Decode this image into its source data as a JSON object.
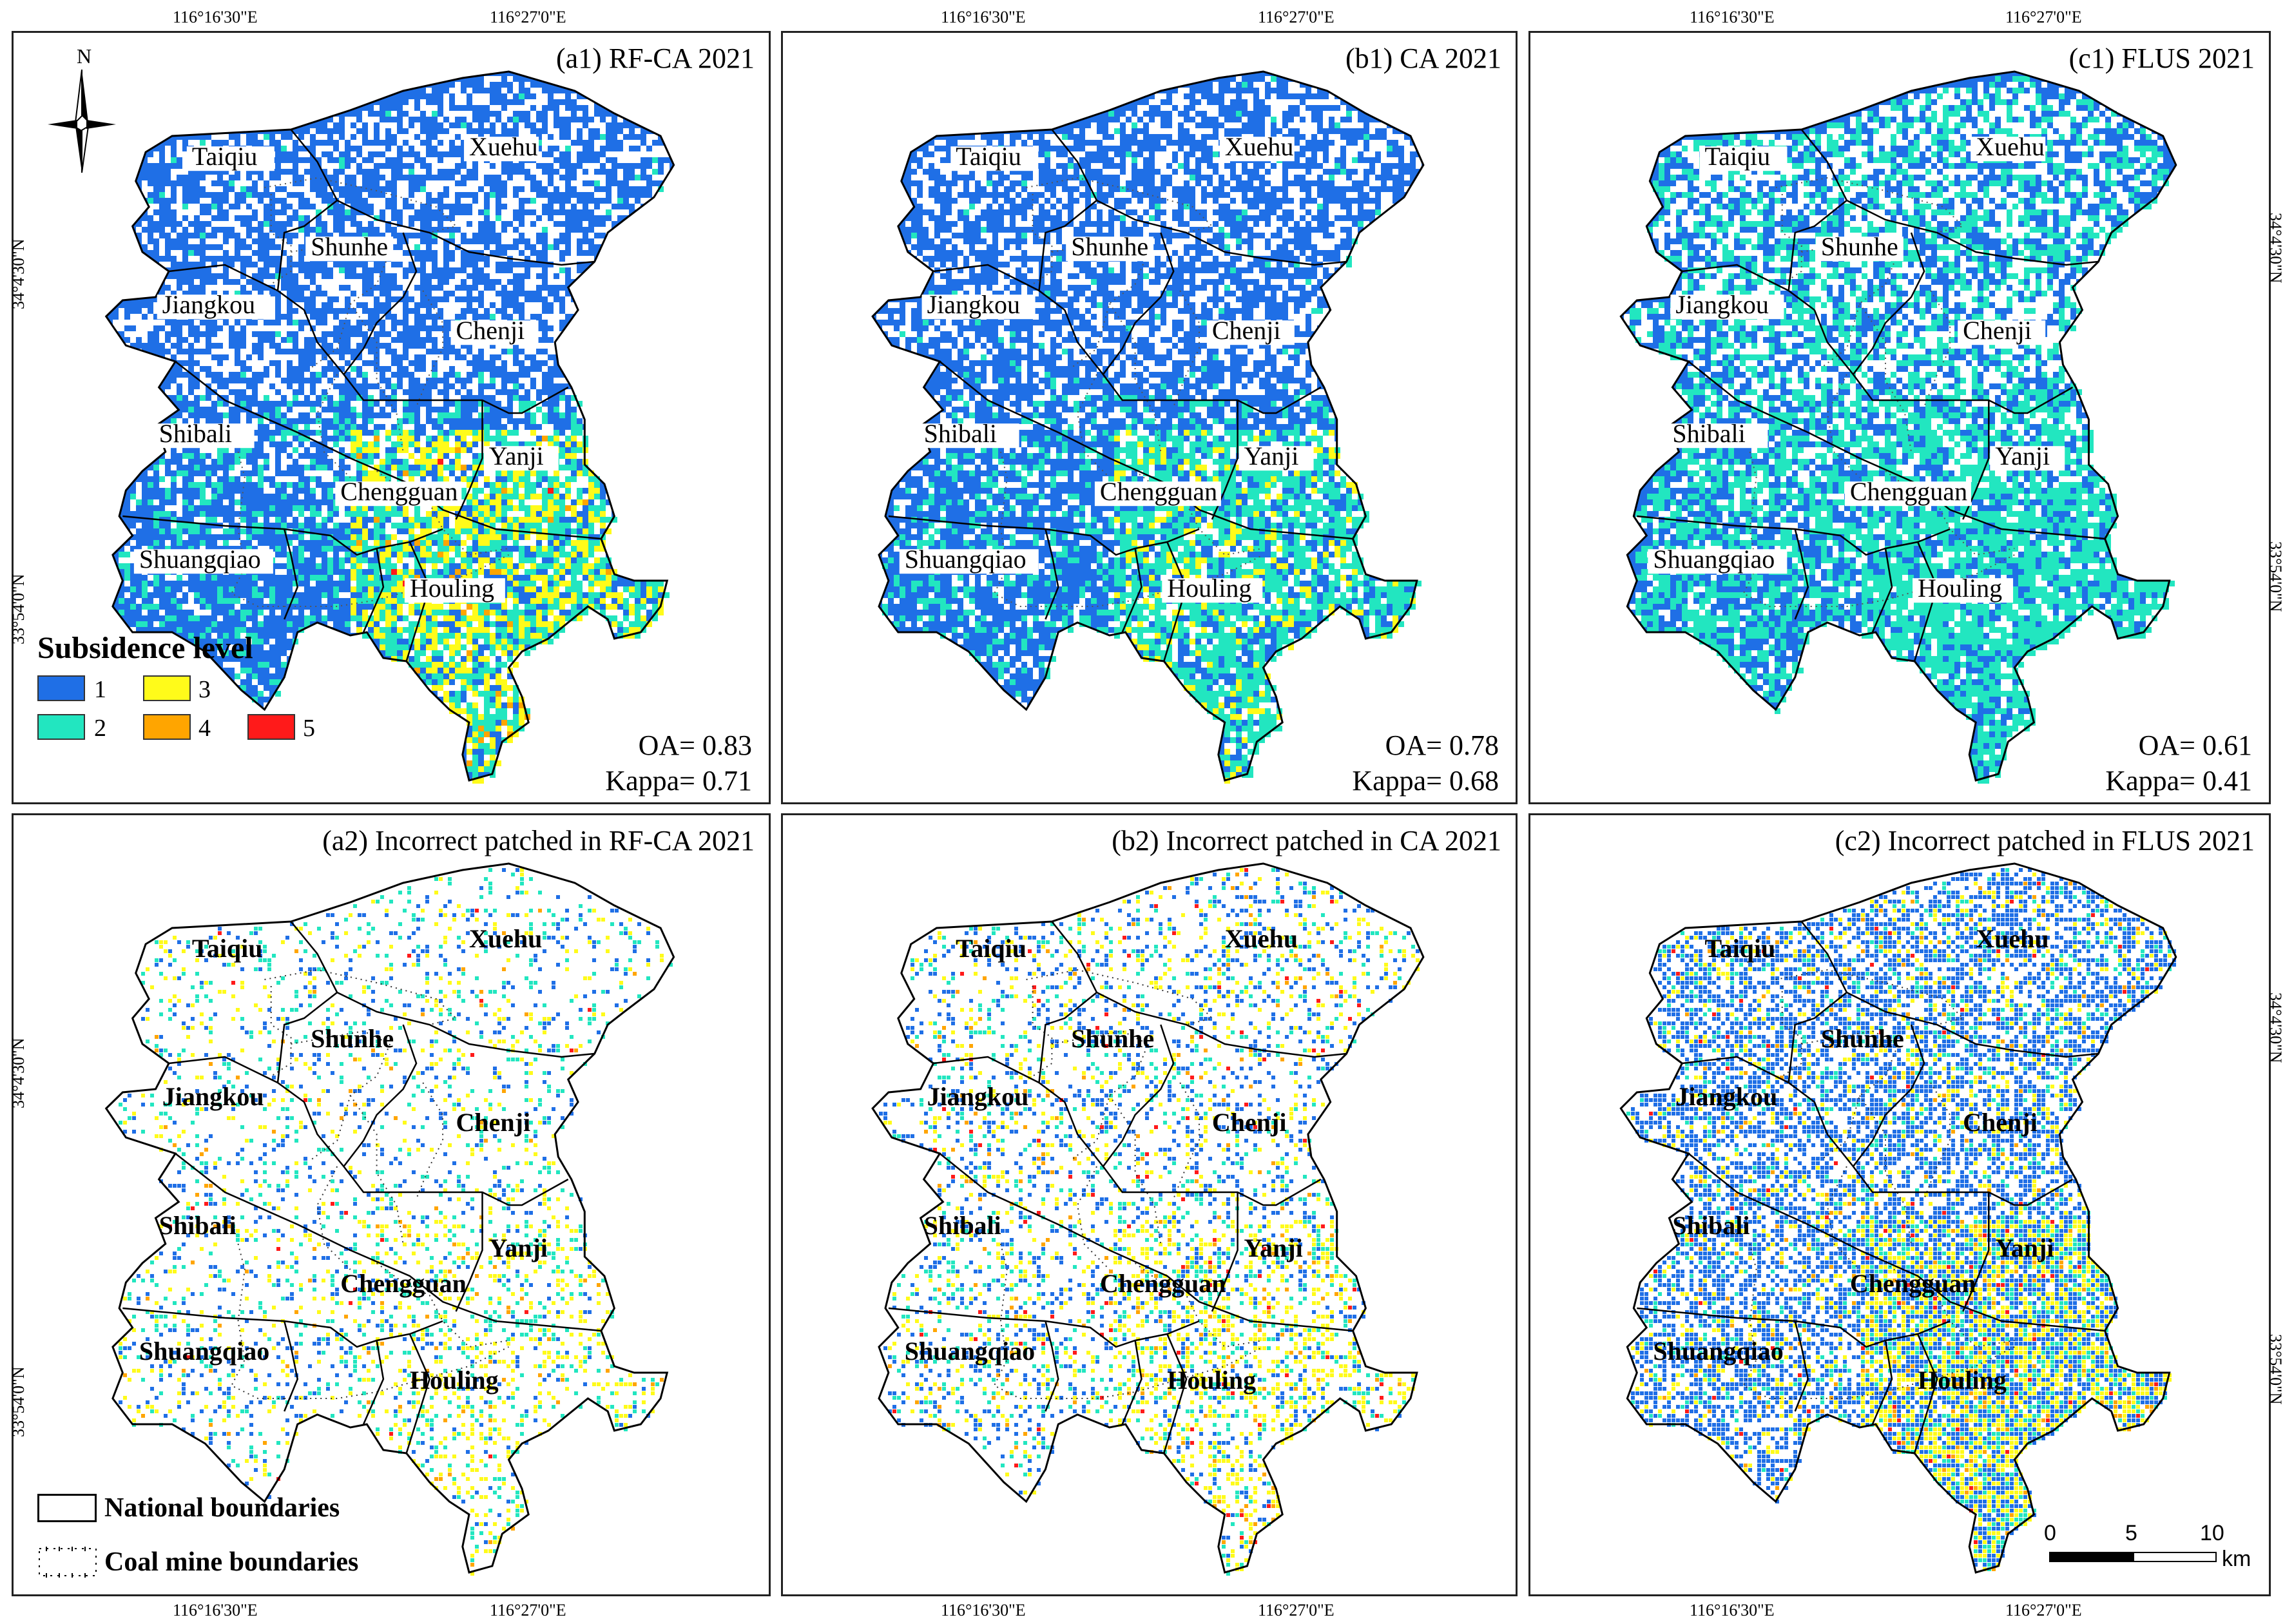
{
  "colors": {
    "level1": "#1f6fe6",
    "level2": "#22e6c0",
    "level3": "#fffb1a",
    "level4": "#ffa500",
    "level5": "#ff1a1a",
    "border": "#000000"
  },
  "coords": {
    "top_left": "116°16'30\"E",
    "top_right": "116°27'0\"E",
    "bottom_left": "116°16'30\"E",
    "bottom_right": "116°27'0\"E",
    "lat_top": "34°4'30\"N",
    "lat_bottom": "33°54'0\"N"
  },
  "north_label": "N",
  "panels": [
    {
      "id": "a1",
      "title": "(a1)  RF-CA 2021",
      "oa": "OA= 0.83",
      "kappa": "Kappa= 0.71"
    },
    {
      "id": "b1",
      "title": "(b1)  CA 2021",
      "oa": "OA= 0.78",
      "kappa": "Kappa= 0.68"
    },
    {
      "id": "c1",
      "title": "(c1)  FLUS 2021",
      "oa": "OA= 0.61",
      "kappa": "Kappa= 0.41"
    },
    {
      "id": "a2",
      "title": "(a2)  Incorrect patched in RF-CA 2021"
    },
    {
      "id": "b2",
      "title": "(b2)  Incorrect patched in CA 2021"
    },
    {
      "id": "c2",
      "title": "(c2)  Incorrect patched in FLUS 2021"
    }
  ],
  "towns": [
    "Taiqiu",
    "Xuehu",
    "Shunhe",
    "Jiangkou",
    "Chenji",
    "Shibali",
    "Yanji",
    "Chengguan",
    "Shuangqiao",
    "Houling"
  ],
  "legend": {
    "title": "Subsidence level",
    "levels": [
      "1",
      "2",
      "3",
      "4",
      "5"
    ],
    "national": "National boundaries",
    "coal": "Coal mine boundaries"
  },
  "scale": {
    "ticks": [
      "0",
      "5",
      "10"
    ],
    "unit": "km"
  }
}
